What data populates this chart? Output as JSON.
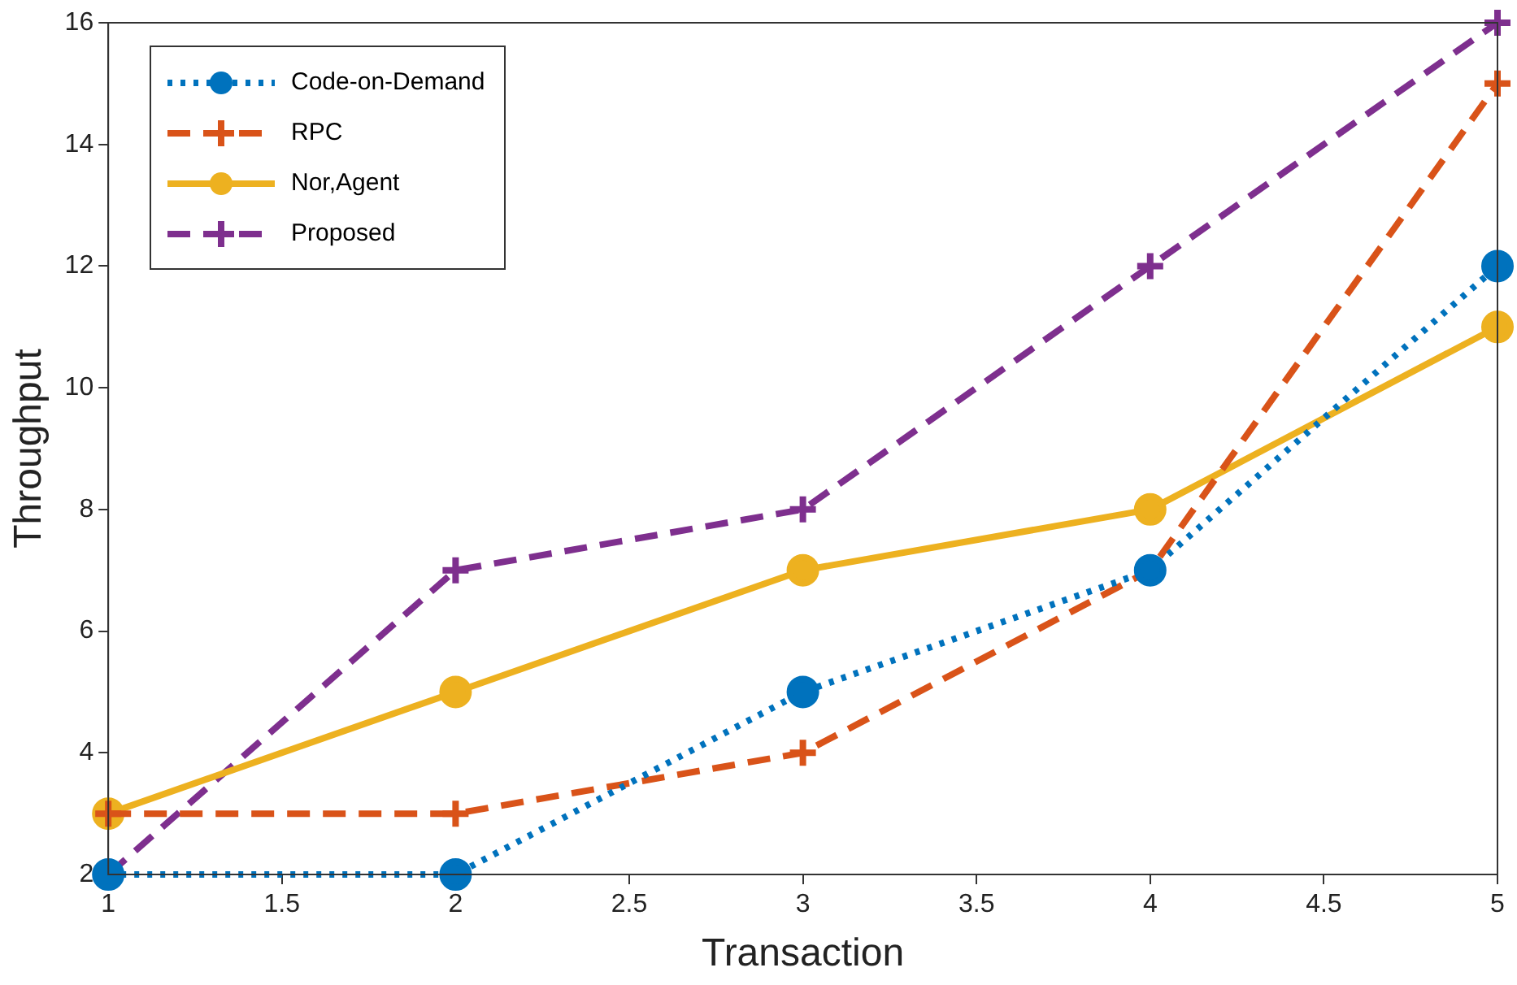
{
  "chart_data": {
    "type": "line",
    "xlabel": "Transaction",
    "ylabel": "Throughput",
    "x": [
      1,
      2,
      3,
      4,
      5
    ],
    "xlim": [
      1,
      5
    ],
    "xticks": [
      1,
      1.5,
      2,
      2.5,
      3,
      3.5,
      4,
      4.5,
      5
    ],
    "ylim": [
      2,
      16
    ],
    "yticks": [
      2,
      4,
      6,
      8,
      10,
      12,
      14,
      16
    ],
    "grid": false,
    "legend": "top left",
    "series": [
      {
        "name": "Code-on-Demand",
        "color": "#0072bd",
        "values": [
          2,
          2,
          5,
          7,
          12
        ],
        "marker": "circle",
        "line_style": "dotted"
      },
      {
        "name": "RPC",
        "color": "#d95319",
        "values": [
          3,
          3,
          4,
          7,
          15
        ],
        "marker": "cross",
        "line_style": "dashed"
      },
      {
        "name": "Nor,Agent",
        "color": "#edb120",
        "values": [
          3,
          5,
          7,
          8,
          11
        ],
        "marker": "circle",
        "line_style": "solid"
      },
      {
        "name": "Proposed",
        "color": "#7e2f8e",
        "values": [
          2,
          7,
          8,
          12,
          16
        ],
        "marker": "cross",
        "line_style": "dashed"
      }
    ]
  }
}
